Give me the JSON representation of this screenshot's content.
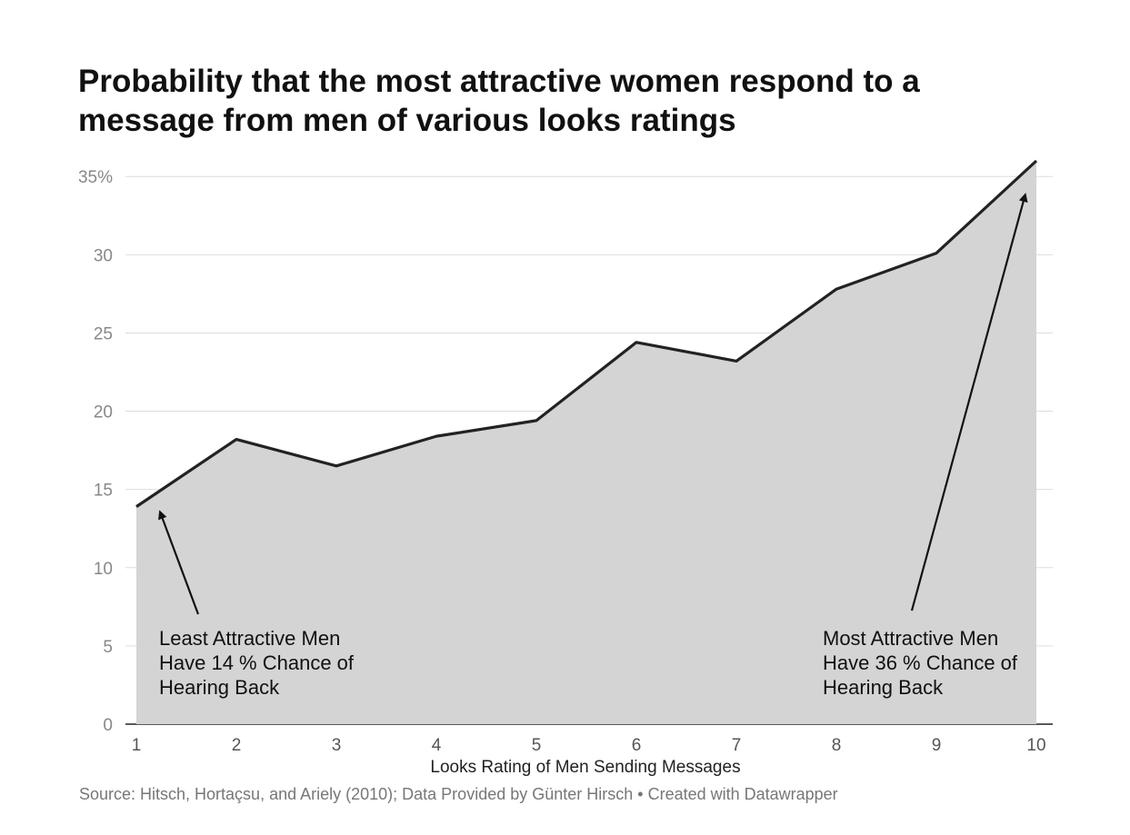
{
  "chart_data": {
    "type": "area",
    "title": "Probability that the most attractive women respond to a message from men of various looks ratings",
    "xlabel": "Looks Rating of Men Sending Messages",
    "ylabel": "",
    "x": [
      1,
      2,
      3,
      4,
      5,
      6,
      7,
      8,
      9,
      10
    ],
    "x_tick_labels": [
      "1",
      "2",
      "3",
      "4",
      "5",
      "6",
      "7",
      "8",
      "9",
      "10"
    ],
    "y": [
      13.9,
      18.2,
      16.5,
      18.4,
      19.4,
      24.4,
      23.2,
      27.8,
      30.1,
      36.0
    ],
    "ylim": [
      0,
      36
    ],
    "y_ticks": [
      0,
      5,
      10,
      15,
      20,
      25,
      30,
      35
    ],
    "y_tick_labels": [
      "0",
      "5",
      "10",
      "15",
      "20",
      "25",
      "30",
      "35%"
    ],
    "grid": true,
    "colors": {
      "area": "#d4d4d4",
      "line": "#222222",
      "grid": "#dddddd",
      "tick_text": "#888888"
    },
    "annotations": [
      {
        "lines": [
          "Least Attractive Men",
          "Have 14 % Chance of",
          "Hearing Back"
        ],
        "points_to_x": 1,
        "points_to_y": 13.9
      },
      {
        "lines": [
          "Most Attractive Men",
          "Have 36 % Chance of",
          "Hearing Back"
        ],
        "points_to_x": 10,
        "points_to_y": 36.0
      }
    ],
    "source": "Source: Hitsch, Hortaçsu, and Ariely (2010); Data Provided by Günter Hirsch • Created with Datawrapper"
  }
}
